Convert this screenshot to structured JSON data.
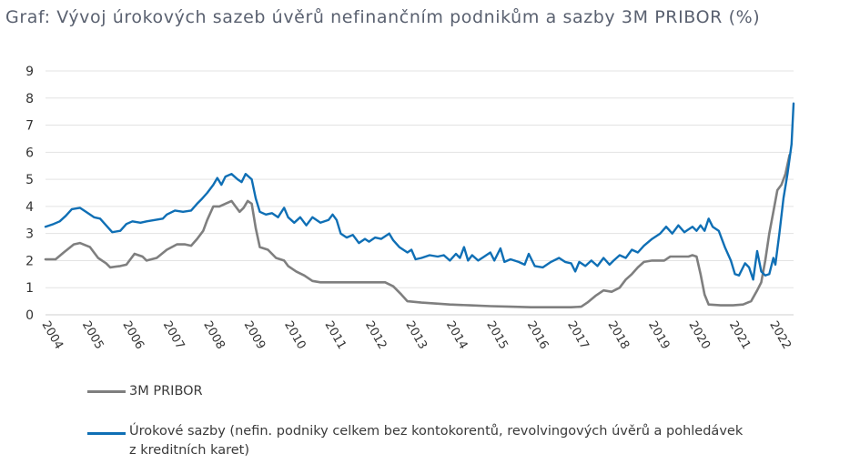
{
  "title": "Graf: Vývoj úrokových sazeb úvěrů nefinančním podnikům a sazby 3M PRIBOR (%)",
  "chart_data": {
    "type": "line",
    "title": "Graf: Vývoj úrokových sazeb úvěrů nefinančním podnikům a sazby 3M PRIBOR (%)",
    "xlabel": "",
    "ylabel": "",
    "xlim": [
      2004.0,
      2022.5
    ],
    "ylim": [
      0,
      9
    ],
    "y_ticks": [
      "0",
      "1",
      "2",
      "3",
      "4",
      "5",
      "6",
      "7",
      "8",
      "9"
    ],
    "x_ticks": [
      "2004",
      "2005",
      "2006",
      "2007",
      "2008",
      "2009",
      "2010",
      "2011",
      "2012",
      "2013",
      "2014",
      "2015",
      "2016",
      "2017",
      "2018",
      "2019",
      "2020",
      "2021",
      "2022"
    ],
    "grid": "horizontal",
    "legend_position": "bottom",
    "series": [
      {
        "name": "3M PRIBOR",
        "color": "#7f7f7f",
        "points": [
          [
            2004.0,
            2.05
          ],
          [
            2004.25,
            2.05
          ],
          [
            2004.45,
            2.3
          ],
          [
            2004.7,
            2.6
          ],
          [
            2004.85,
            2.65
          ],
          [
            2005.1,
            2.5
          ],
          [
            2005.3,
            2.1
          ],
          [
            2005.5,
            1.9
          ],
          [
            2005.6,
            1.75
          ],
          [
            2005.85,
            1.8
          ],
          [
            2006.0,
            1.85
          ],
          [
            2006.2,
            2.25
          ],
          [
            2006.4,
            2.15
          ],
          [
            2006.5,
            2.0
          ],
          [
            2006.75,
            2.1
          ],
          [
            2007.0,
            2.4
          ],
          [
            2007.25,
            2.6
          ],
          [
            2007.45,
            2.6
          ],
          [
            2007.6,
            2.55
          ],
          [
            2007.75,
            2.8
          ],
          [
            2007.9,
            3.1
          ],
          [
            2008.0,
            3.5
          ],
          [
            2008.15,
            4.0
          ],
          [
            2008.3,
            4.0
          ],
          [
            2008.45,
            4.1
          ],
          [
            2008.6,
            4.2
          ],
          [
            2008.7,
            4.0
          ],
          [
            2008.8,
            3.8
          ],
          [
            2008.9,
            3.95
          ],
          [
            2009.0,
            4.2
          ],
          [
            2009.1,
            4.1
          ],
          [
            2009.2,
            3.2
          ],
          [
            2009.3,
            2.5
          ],
          [
            2009.5,
            2.4
          ],
          [
            2009.7,
            2.1
          ],
          [
            2009.9,
            2.0
          ],
          [
            2010.0,
            1.8
          ],
          [
            2010.2,
            1.6
          ],
          [
            2010.4,
            1.45
          ],
          [
            2010.6,
            1.25
          ],
          [
            2010.8,
            1.2
          ],
          [
            2011.0,
            1.2
          ],
          [
            2011.5,
            1.2
          ],
          [
            2012.0,
            1.2
          ],
          [
            2012.2,
            1.2
          ],
          [
            2012.4,
            1.2
          ],
          [
            2012.6,
            1.05
          ],
          [
            2012.8,
            0.75
          ],
          [
            2012.95,
            0.5
          ],
          [
            2013.3,
            0.45
          ],
          [
            2013.8,
            0.4
          ],
          [
            2014.0,
            0.38
          ],
          [
            2014.5,
            0.35
          ],
          [
            2015.0,
            0.32
          ],
          [
            2015.5,
            0.3
          ],
          [
            2016.0,
            0.28
          ],
          [
            2016.5,
            0.28
          ],
          [
            2017.0,
            0.28
          ],
          [
            2017.25,
            0.3
          ],
          [
            2017.4,
            0.45
          ],
          [
            2017.6,
            0.7
          ],
          [
            2017.8,
            0.9
          ],
          [
            2018.0,
            0.85
          ],
          [
            2018.2,
            1.0
          ],
          [
            2018.35,
            1.3
          ],
          [
            2018.5,
            1.5
          ],
          [
            2018.65,
            1.75
          ],
          [
            2018.8,
            1.95
          ],
          [
            2019.0,
            2.0
          ],
          [
            2019.3,
            2.0
          ],
          [
            2019.45,
            2.15
          ],
          [
            2019.7,
            2.15
          ],
          [
            2019.9,
            2.15
          ],
          [
            2020.0,
            2.2
          ],
          [
            2020.1,
            2.15
          ],
          [
            2020.2,
            1.5
          ],
          [
            2020.3,
            0.75
          ],
          [
            2020.4,
            0.38
          ],
          [
            2020.7,
            0.35
          ],
          [
            2021.0,
            0.35
          ],
          [
            2021.25,
            0.38
          ],
          [
            2021.45,
            0.5
          ],
          [
            2021.6,
            0.9
          ],
          [
            2021.7,
            1.2
          ],
          [
            2021.8,
            2.0
          ],
          [
            2021.9,
            3.0
          ],
          [
            2022.0,
            3.8
          ],
          [
            2022.1,
            4.6
          ],
          [
            2022.2,
            4.8
          ],
          [
            2022.3,
            5.2
          ],
          [
            2022.4,
            5.9
          ]
        ]
      },
      {
        "name": "Úrokové sazby (nefin. podniky celkem bez kontokorentů, revolvingových úvěrů a pohledávek z kreditních karet)",
        "color": "#0f6fb5",
        "points": [
          [
            2004.0,
            3.25
          ],
          [
            2004.2,
            3.35
          ],
          [
            2004.35,
            3.45
          ],
          [
            2004.5,
            3.65
          ],
          [
            2004.65,
            3.9
          ],
          [
            2004.85,
            3.95
          ],
          [
            2005.0,
            3.8
          ],
          [
            2005.2,
            3.6
          ],
          [
            2005.35,
            3.55
          ],
          [
            2005.5,
            3.3
          ],
          [
            2005.65,
            3.05
          ],
          [
            2005.85,
            3.1
          ],
          [
            2006.0,
            3.35
          ],
          [
            2006.15,
            3.45
          ],
          [
            2006.35,
            3.4
          ],
          [
            2006.5,
            3.45
          ],
          [
            2006.7,
            3.5
          ],
          [
            2006.9,
            3.55
          ],
          [
            2007.0,
            3.7
          ],
          [
            2007.2,
            3.85
          ],
          [
            2007.4,
            3.8
          ],
          [
            2007.6,
            3.85
          ],
          [
            2007.75,
            4.1
          ],
          [
            2007.85,
            4.25
          ],
          [
            2008.0,
            4.5
          ],
          [
            2008.15,
            4.8
          ],
          [
            2008.25,
            5.05
          ],
          [
            2008.35,
            4.8
          ],
          [
            2008.45,
            5.1
          ],
          [
            2008.6,
            5.2
          ],
          [
            2008.75,
            5.0
          ],
          [
            2008.85,
            4.9
          ],
          [
            2008.95,
            5.2
          ],
          [
            2009.1,
            5.0
          ],
          [
            2009.2,
            4.3
          ],
          [
            2009.3,
            3.8
          ],
          [
            2009.45,
            3.7
          ],
          [
            2009.6,
            3.75
          ],
          [
            2009.75,
            3.6
          ],
          [
            2009.9,
            3.95
          ],
          [
            2010.0,
            3.6
          ],
          [
            2010.15,
            3.4
          ],
          [
            2010.3,
            3.6
          ],
          [
            2010.45,
            3.3
          ],
          [
            2010.6,
            3.6
          ],
          [
            2010.8,
            3.4
          ],
          [
            2011.0,
            3.5
          ],
          [
            2011.1,
            3.7
          ],
          [
            2011.2,
            3.5
          ],
          [
            2011.3,
            3.0
          ],
          [
            2011.45,
            2.85
          ],
          [
            2011.6,
            2.95
          ],
          [
            2011.75,
            2.65
          ],
          [
            2011.9,
            2.8
          ],
          [
            2012.0,
            2.7
          ],
          [
            2012.15,
            2.85
          ],
          [
            2012.3,
            2.8
          ],
          [
            2012.5,
            3.0
          ],
          [
            2012.6,
            2.75
          ],
          [
            2012.75,
            2.5
          ],
          [
            2012.95,
            2.3
          ],
          [
            2013.05,
            2.4
          ],
          [
            2013.15,
            2.05
          ],
          [
            2013.3,
            2.1
          ],
          [
            2013.5,
            2.2
          ],
          [
            2013.7,
            2.15
          ],
          [
            2013.85,
            2.2
          ],
          [
            2014.0,
            2.0
          ],
          [
            2014.15,
            2.25
          ],
          [
            2014.25,
            2.1
          ],
          [
            2014.35,
            2.5
          ],
          [
            2014.45,
            2.0
          ],
          [
            2014.55,
            2.2
          ],
          [
            2014.7,
            2.0
          ],
          [
            2014.85,
            2.15
          ],
          [
            2015.0,
            2.3
          ],
          [
            2015.1,
            2.0
          ],
          [
            2015.25,
            2.45
          ],
          [
            2015.35,
            1.95
          ],
          [
            2015.5,
            2.05
          ],
          [
            2015.7,
            1.95
          ],
          [
            2015.85,
            1.85
          ],
          [
            2015.95,
            2.25
          ],
          [
            2016.1,
            1.8
          ],
          [
            2016.3,
            1.75
          ],
          [
            2016.5,
            1.95
          ],
          [
            2016.7,
            2.1
          ],
          [
            2016.85,
            1.95
          ],
          [
            2017.0,
            1.9
          ],
          [
            2017.1,
            1.6
          ],
          [
            2017.2,
            1.95
          ],
          [
            2017.35,
            1.8
          ],
          [
            2017.5,
            2.0
          ],
          [
            2017.65,
            1.8
          ],
          [
            2017.8,
            2.1
          ],
          [
            2017.95,
            1.85
          ],
          [
            2018.05,
            2.0
          ],
          [
            2018.2,
            2.2
          ],
          [
            2018.35,
            2.1
          ],
          [
            2018.5,
            2.4
          ],
          [
            2018.65,
            2.3
          ],
          [
            2018.8,
            2.55
          ],
          [
            2019.0,
            2.8
          ],
          [
            2019.2,
            3.0
          ],
          [
            2019.35,
            3.25
          ],
          [
            2019.5,
            3.0
          ],
          [
            2019.65,
            3.3
          ],
          [
            2019.8,
            3.05
          ],
          [
            2020.0,
            3.25
          ],
          [
            2020.1,
            3.1
          ],
          [
            2020.2,
            3.3
          ],
          [
            2020.3,
            3.1
          ],
          [
            2020.4,
            3.55
          ],
          [
            2020.5,
            3.25
          ],
          [
            2020.65,
            3.1
          ],
          [
            2020.8,
            2.5
          ],
          [
            2020.95,
            2.0
          ],
          [
            2021.05,
            1.5
          ],
          [
            2021.15,
            1.45
          ],
          [
            2021.3,
            1.9
          ],
          [
            2021.4,
            1.75
          ],
          [
            2021.5,
            1.3
          ],
          [
            2021.6,
            2.35
          ],
          [
            2021.7,
            1.6
          ],
          [
            2021.8,
            1.45
          ],
          [
            2021.9,
            1.5
          ],
          [
            2022.0,
            2.1
          ],
          [
            2022.05,
            1.85
          ],
          [
            2022.15,
            3.0
          ],
          [
            2022.25,
            4.3
          ],
          [
            2022.35,
            5.2
          ],
          [
            2022.45,
            6.3
          ],
          [
            2022.5,
            7.8
          ]
        ]
      }
    ]
  },
  "legend": {
    "pribor_label": "3M PRIBOR",
    "rates_label_line1": "Úrokové sazby (nefin. podniky celkem bez kontokorentů, revolvingových úvěrů a pohledávek",
    "rates_label_line2": "z kreditních karet)"
  }
}
